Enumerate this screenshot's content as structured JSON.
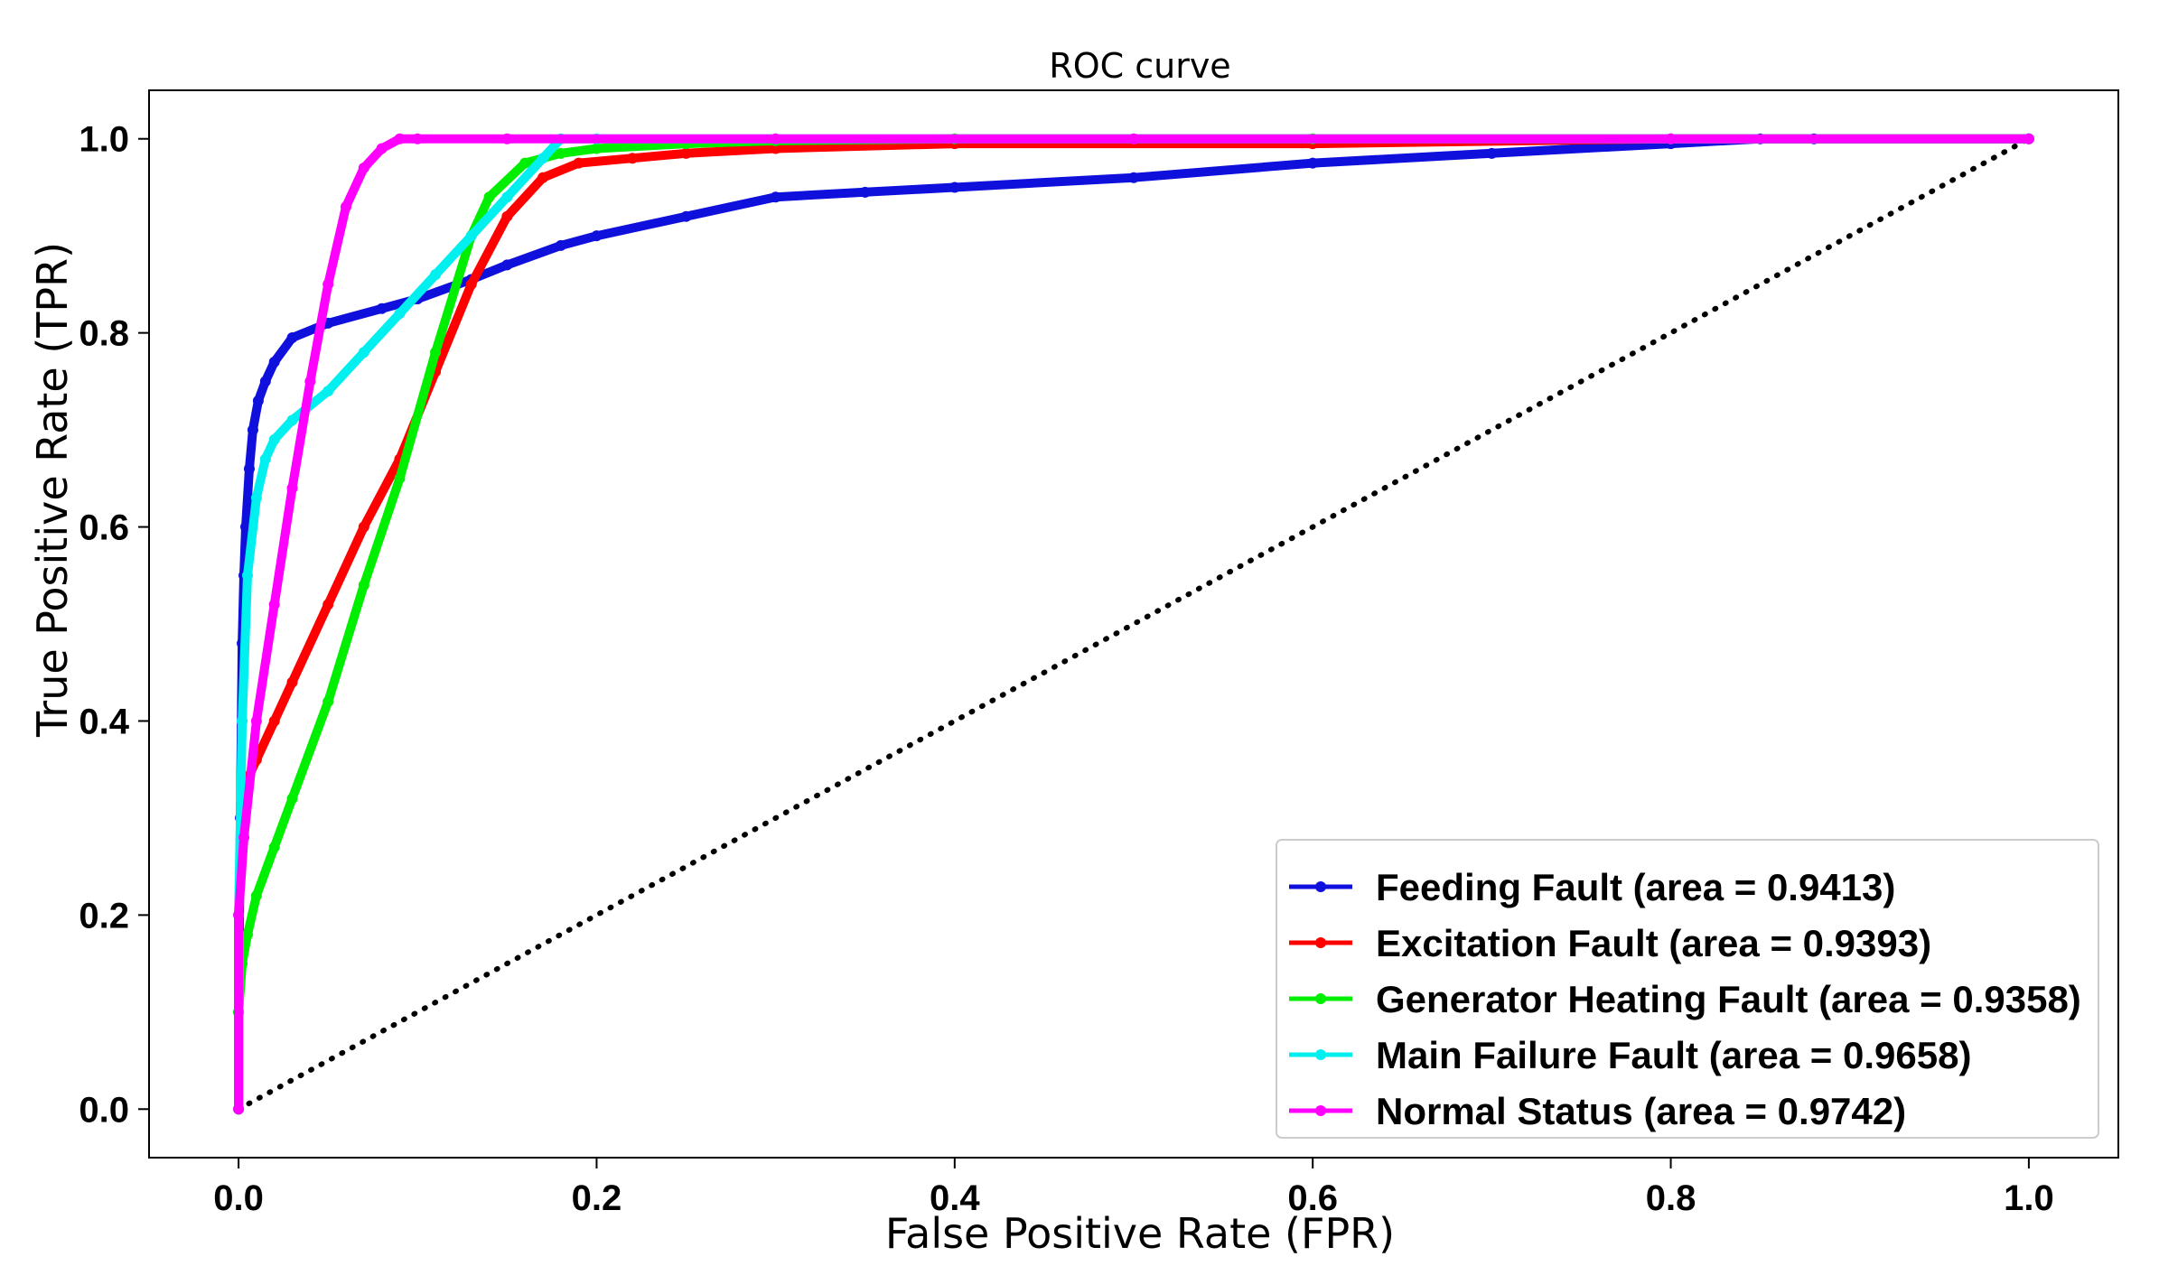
{
  "chart_data": {
    "type": "line",
    "title": "ROC curve",
    "xlabel": "False Positive Rate (FPR)",
    "ylabel": "True Positive Rate (TPR)",
    "xlim": [
      -0.05,
      1.05
    ],
    "ylim": [
      -0.05,
      1.05
    ],
    "xticks": [
      0.0,
      0.2,
      0.4,
      0.6,
      0.8,
      1.0
    ],
    "yticks": [
      0.0,
      0.2,
      0.4,
      0.6,
      0.8,
      1.0
    ],
    "xtick_labels": [
      "0.0",
      "0.2",
      "0.4",
      "0.6",
      "0.8",
      "1.0"
    ],
    "ytick_labels": [
      "0.0",
      "0.2",
      "0.4",
      "0.6",
      "0.8",
      "1.0"
    ],
    "grid": false,
    "legend_position": "lower-right",
    "diagonal": {
      "style": "dotted",
      "color": "#000000",
      "x": [
        0,
        1
      ],
      "y": [
        0,
        1
      ]
    },
    "series": [
      {
        "name": "Feeding Fault (area = 0.9413)",
        "color": "#1010dd",
        "x": [
          0.0,
          0.0,
          0.001,
          0.002,
          0.003,
          0.004,
          0.006,
          0.008,
          0.011,
          0.015,
          0.02,
          0.03,
          0.05,
          0.08,
          0.1,
          0.13,
          0.15,
          0.18,
          0.2,
          0.25,
          0.3,
          0.35,
          0.4,
          0.5,
          0.6,
          0.7,
          0.8,
          0.85,
          0.88,
          1.0
        ],
        "y": [
          0.0,
          0.1,
          0.3,
          0.48,
          0.55,
          0.6,
          0.66,
          0.7,
          0.73,
          0.75,
          0.77,
          0.795,
          0.81,
          0.825,
          0.835,
          0.855,
          0.87,
          0.89,
          0.9,
          0.92,
          0.94,
          0.945,
          0.95,
          0.96,
          0.975,
          0.985,
          0.995,
          1.0,
          1.0,
          1.0
        ]
      },
      {
        "name": "Excitation Fault (area = 0.9393)",
        "color": "#ff0000",
        "x": [
          0.0,
          0.0,
          0.002,
          0.005,
          0.01,
          0.02,
          0.03,
          0.05,
          0.07,
          0.09,
          0.11,
          0.13,
          0.15,
          0.17,
          0.19,
          0.22,
          0.25,
          0.3,
          0.4,
          0.6,
          0.8,
          1.0
        ],
        "y": [
          0.0,
          0.2,
          0.3,
          0.34,
          0.36,
          0.4,
          0.44,
          0.52,
          0.6,
          0.67,
          0.76,
          0.85,
          0.92,
          0.96,
          0.975,
          0.98,
          0.985,
          0.99,
          0.995,
          0.995,
          1.0,
          1.0
        ]
      },
      {
        "name": "Generator Heating Fault (area = 0.9358)",
        "color": "#00ee00",
        "x": [
          0.0,
          0.0,
          0.002,
          0.005,
          0.01,
          0.02,
          0.03,
          0.05,
          0.07,
          0.09,
          0.11,
          0.13,
          0.14,
          0.16,
          0.18,
          0.2,
          0.25,
          0.3,
          0.4,
          0.6,
          0.8,
          1.0
        ],
        "y": [
          0.0,
          0.1,
          0.15,
          0.18,
          0.22,
          0.27,
          0.32,
          0.42,
          0.54,
          0.65,
          0.78,
          0.9,
          0.94,
          0.975,
          0.985,
          0.99,
          0.995,
          0.998,
          1.0,
          1.0,
          1.0,
          1.0
        ]
      },
      {
        "name": "Main Failure Fault (area = 0.9658)",
        "color": "#00f0f0",
        "x": [
          0.0,
          0.0,
          0.002,
          0.005,
          0.01,
          0.015,
          0.02,
          0.03,
          0.05,
          0.07,
          0.09,
          0.11,
          0.13,
          0.15,
          0.17,
          0.18,
          0.2,
          0.3,
          0.5,
          0.8,
          1.0
        ],
        "y": [
          0.0,
          0.2,
          0.4,
          0.55,
          0.63,
          0.67,
          0.69,
          0.71,
          0.74,
          0.78,
          0.82,
          0.86,
          0.9,
          0.94,
          0.98,
          1.0,
          1.0,
          1.0,
          1.0,
          1.0,
          1.0
        ]
      },
      {
        "name": "Normal Status (area = 0.9742)",
        "color": "#ff00ff",
        "x": [
          0.0,
          0.0,
          0.003,
          0.01,
          0.02,
          0.03,
          0.04,
          0.05,
          0.06,
          0.07,
          0.08,
          0.09,
          0.1,
          0.15,
          0.3,
          0.5,
          0.8,
          1.0
        ],
        "y": [
          0.0,
          0.2,
          0.28,
          0.4,
          0.52,
          0.64,
          0.75,
          0.85,
          0.93,
          0.97,
          0.99,
          1.0,
          1.0,
          1.0,
          1.0,
          1.0,
          1.0,
          1.0
        ]
      }
    ]
  }
}
